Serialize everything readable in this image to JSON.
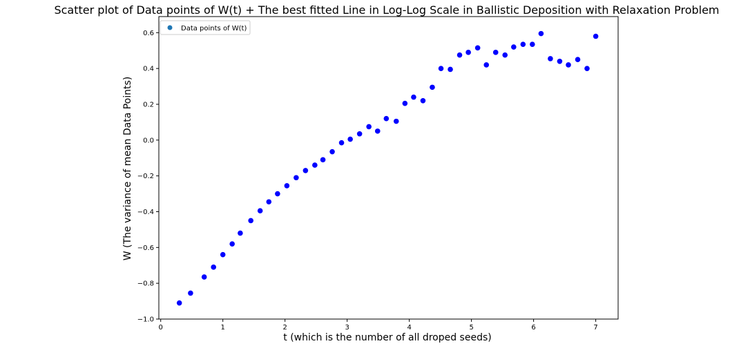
{
  "chart_data": {
    "type": "scatter",
    "title": "Scatter plot of Data points of W(t) + The best fitted Line in Log-Log Scale in Ballistic Deposition with Relaxation Problem",
    "xlabel": "t (which is the number of all droped seeds)",
    "ylabel": "W (The variance of mean Data Points)",
    "xlim": [
      -0.03,
      7.36
    ],
    "ylim": [
      -1.0,
      0.69
    ],
    "xticks": [
      0,
      1,
      2,
      3,
      4,
      5,
      6,
      7
    ],
    "xtick_labels": [
      "0",
      "1",
      "2",
      "3",
      "4",
      "5",
      "6",
      "7"
    ],
    "yticks": [
      -1.0,
      -0.8,
      -0.6,
      -0.4,
      -0.2,
      0.0,
      0.2,
      0.4,
      0.6
    ],
    "ytick_labels": [
      "−1.0",
      "−0.8",
      "−0.6",
      "−0.4",
      "−0.2",
      "0.0",
      "0.2",
      "0.4",
      "0.6"
    ],
    "grid": false,
    "legend_position": "top-left",
    "series": [
      {
        "name": "Data points of W(t)",
        "legend_color": "#1f77b4",
        "marker_color": "#0000ff",
        "points": [
          {
            "x": 0.3,
            "y": -0.91
          },
          {
            "x": 0.48,
            "y": -0.855
          },
          {
            "x": 0.7,
            "y": -0.765
          },
          {
            "x": 0.85,
            "y": -0.71
          },
          {
            "x": 1.0,
            "y": -0.64
          },
          {
            "x": 1.15,
            "y": -0.58
          },
          {
            "x": 1.28,
            "y": -0.52
          },
          {
            "x": 1.45,
            "y": -0.45
          },
          {
            "x": 1.6,
            "y": -0.395
          },
          {
            "x": 1.74,
            "y": -0.345
          },
          {
            "x": 1.88,
            "y": -0.3
          },
          {
            "x": 2.03,
            "y": -0.255
          },
          {
            "x": 2.18,
            "y": -0.21
          },
          {
            "x": 2.33,
            "y": -0.17
          },
          {
            "x": 2.48,
            "y": -0.14
          },
          {
            "x": 2.61,
            "y": -0.11
          },
          {
            "x": 2.76,
            "y": -0.065
          },
          {
            "x": 2.91,
            "y": -0.015
          },
          {
            "x": 3.05,
            "y": 0.005
          },
          {
            "x": 3.2,
            "y": 0.035
          },
          {
            "x": 3.35,
            "y": 0.075
          },
          {
            "x": 3.49,
            "y": 0.05
          },
          {
            "x": 3.63,
            "y": 0.12
          },
          {
            "x": 3.79,
            "y": 0.105
          },
          {
            "x": 3.93,
            "y": 0.205
          },
          {
            "x": 4.07,
            "y": 0.24
          },
          {
            "x": 4.22,
            "y": 0.22
          },
          {
            "x": 4.37,
            "y": 0.295
          },
          {
            "x": 4.51,
            "y": 0.4
          },
          {
            "x": 4.66,
            "y": 0.395
          },
          {
            "x": 4.81,
            "y": 0.475
          },
          {
            "x": 4.95,
            "y": 0.49
          },
          {
            "x": 5.1,
            "y": 0.515
          },
          {
            "x": 5.24,
            "y": 0.42
          },
          {
            "x": 5.39,
            "y": 0.49
          },
          {
            "x": 5.54,
            "y": 0.475
          },
          {
            "x": 5.68,
            "y": 0.52
          },
          {
            "x": 5.83,
            "y": 0.535
          },
          {
            "x": 5.98,
            "y": 0.535
          },
          {
            "x": 6.12,
            "y": 0.595
          },
          {
            "x": 6.27,
            "y": 0.455
          },
          {
            "x": 6.42,
            "y": 0.44
          },
          {
            "x": 6.56,
            "y": 0.42
          },
          {
            "x": 6.71,
            "y": 0.45
          },
          {
            "x": 6.86,
            "y": 0.4
          },
          {
            "x": 7.0,
            "y": 0.58
          }
        ]
      }
    ]
  }
}
